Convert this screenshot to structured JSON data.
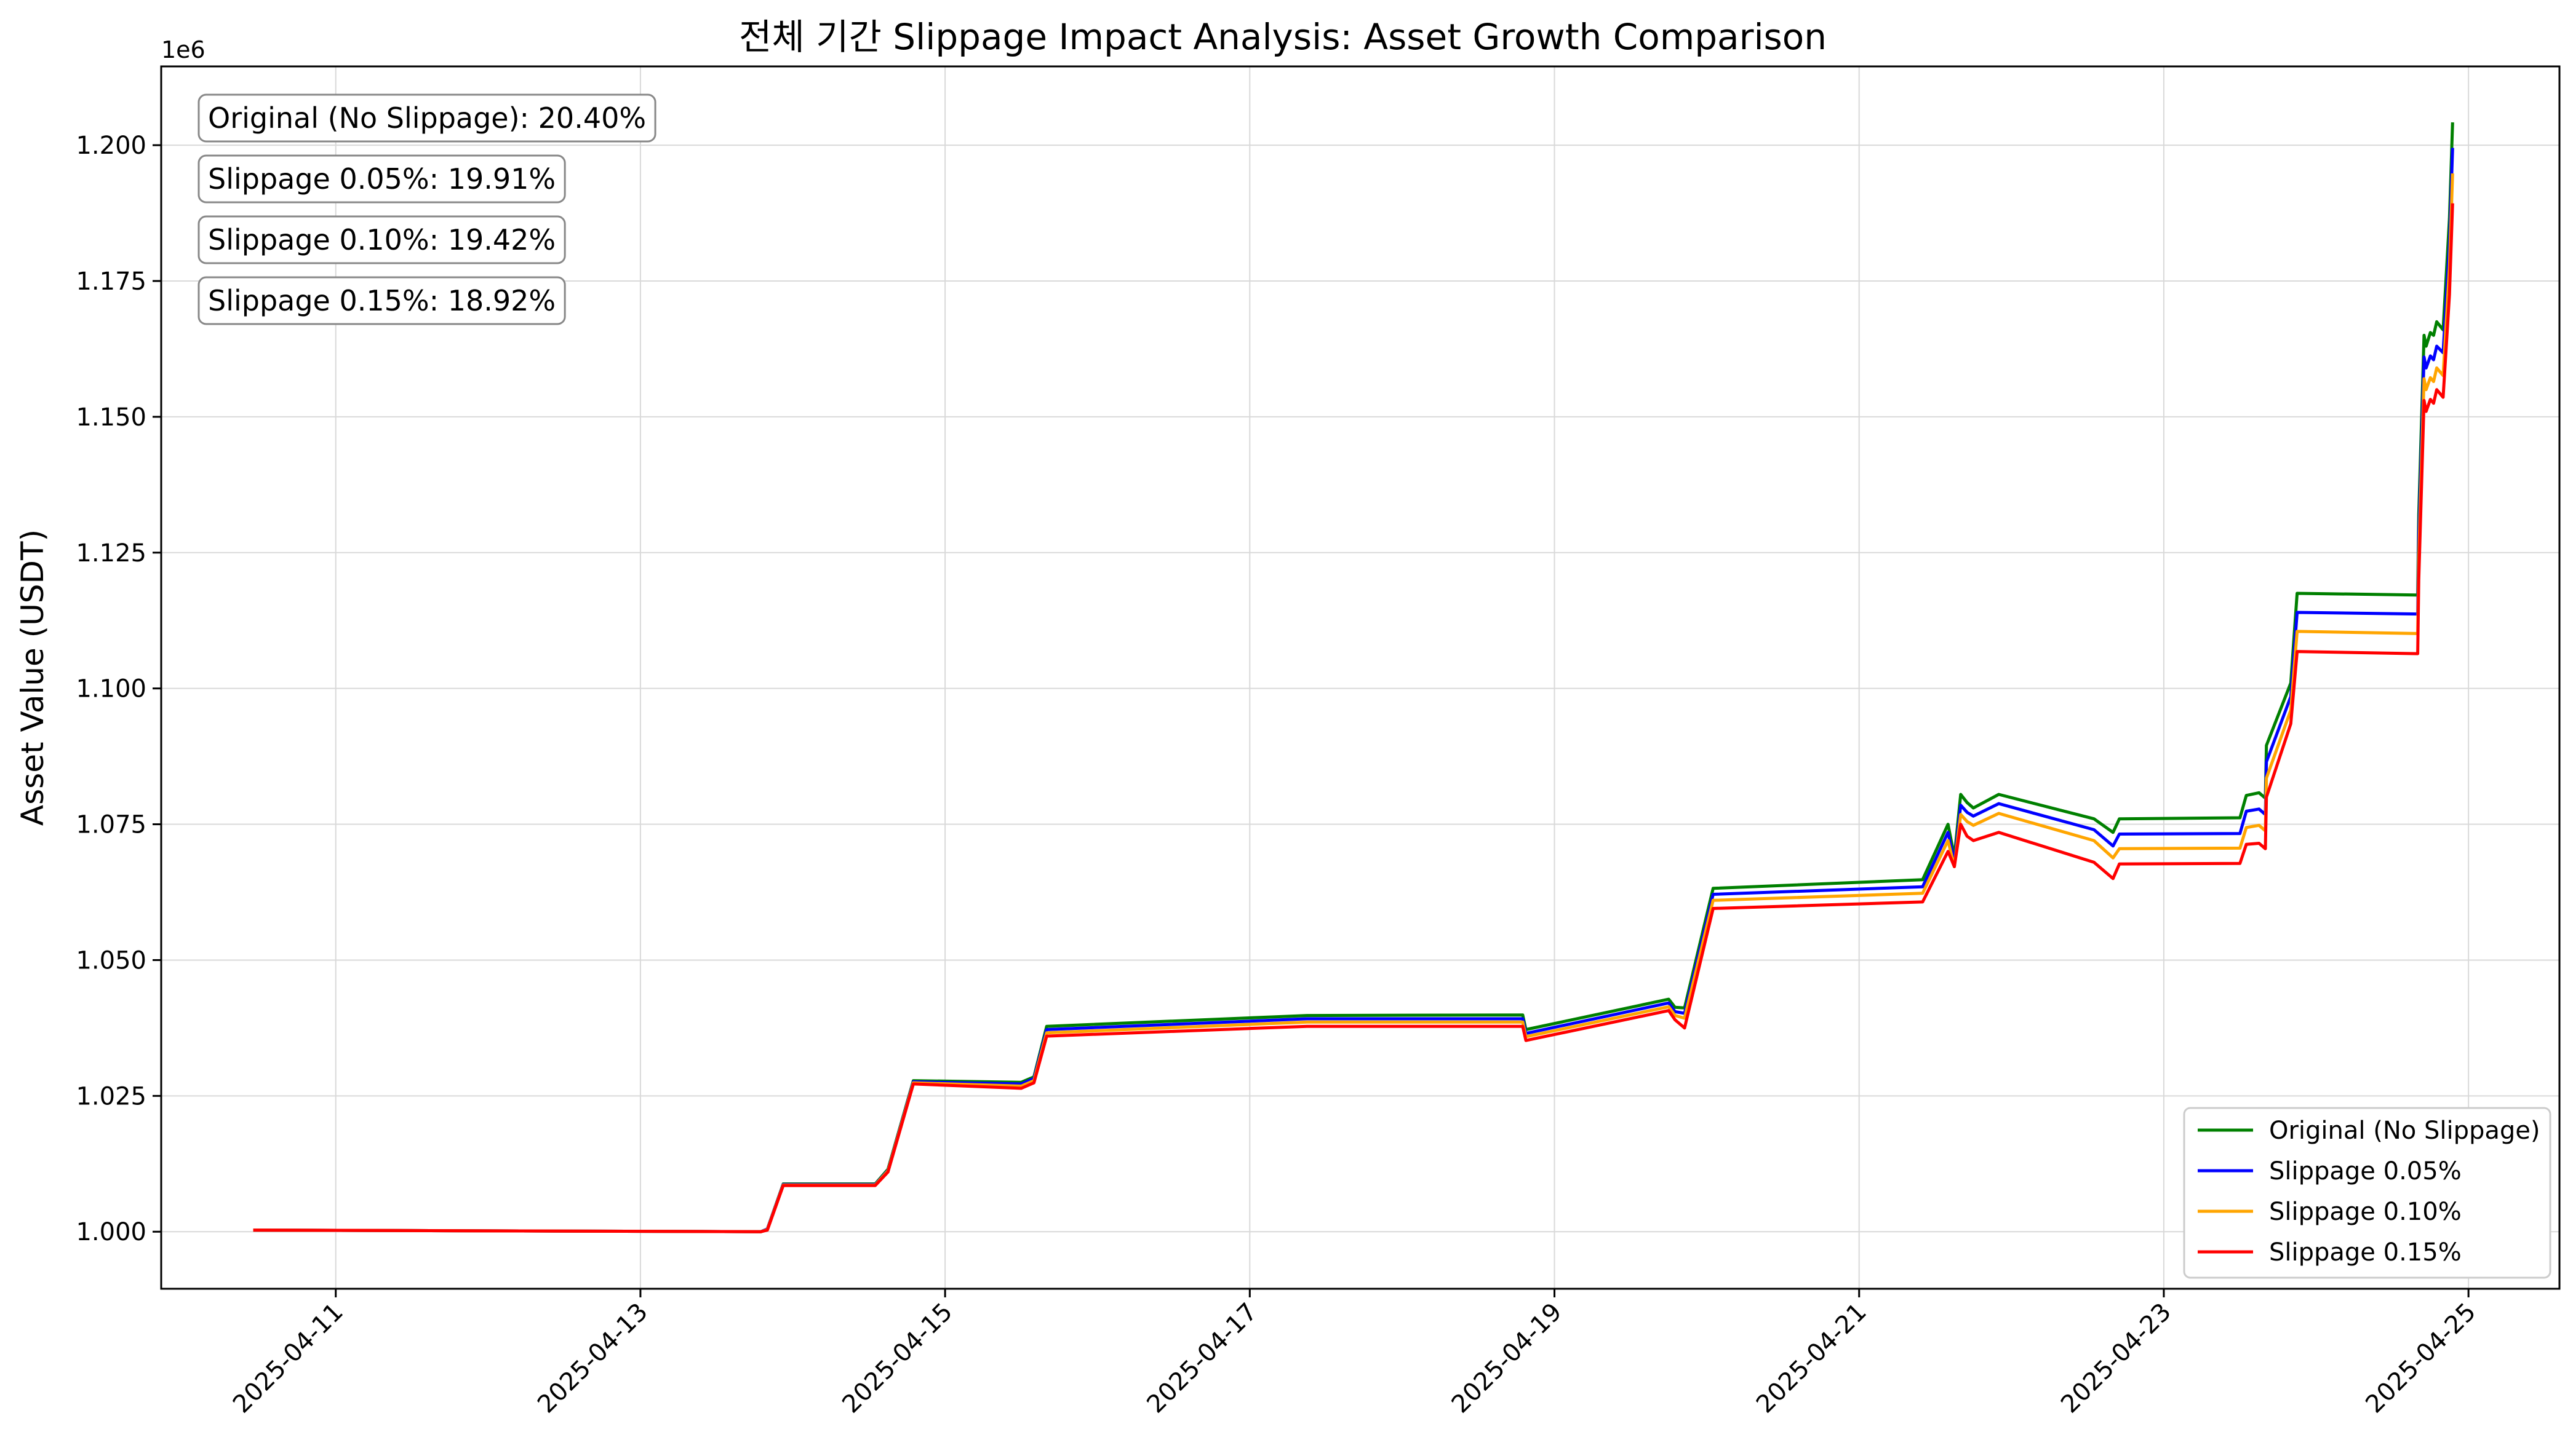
{
  "chart_data": {
    "type": "line",
    "title": "전체 기간 Slippage Impact Analysis: Asset Growth Comparison",
    "xlabel": "",
    "ylabel": "Asset Value (USDT)",
    "y_offset_label": "1e6",
    "x_ticks": [
      "2025-04-11",
      "2025-04-13",
      "2025-04-15",
      "2025-04-17",
      "2025-04-19",
      "2025-04-21",
      "2025-04-23",
      "2025-04-25"
    ],
    "y_ticks": [
      "1.000",
      "1.025",
      "1.050",
      "1.075",
      "1.100",
      "1.125",
      "1.150",
      "1.175",
      "1.200"
    ],
    "xlim": [
      "2025-04-09T20:30",
      "2025-04-25T14:20"
    ],
    "ylim": [
      0.9895,
      1.2145
    ],
    "grid": true,
    "legend_position": "bottom-right",
    "annotations": [
      "Original (No Slippage): 20.40%",
      "Slippage 0.05%: 19.91%",
      "Slippage 0.10%: 19.42%",
      "Slippage 0.15%: 18.92%"
    ],
    "x": [
      "2025-04-10T11:00",
      "2025-04-13T19:00",
      "2025-04-13T20:00",
      "2025-04-13T22:30",
      "2025-04-14T13:00",
      "2025-04-14T15:00",
      "2025-04-14T19:00",
      "2025-04-15T12:00",
      "2025-04-15T14:00",
      "2025-04-15T16:00",
      "2025-04-17T09:00",
      "2025-04-18T19:00",
      "2025-04-18T19:30",
      "2025-04-19T18:00",
      "2025-04-19T19:00",
      "2025-04-19T20:30",
      "2025-04-20T01:00",
      "2025-04-21T10:00",
      "2025-04-21T14:00",
      "2025-04-21T15:00",
      "2025-04-21T16:00",
      "2025-04-21T17:00",
      "2025-04-21T18:00",
      "2025-04-21T22:00",
      "2025-04-22T13:00",
      "2025-04-22T16:00",
      "2025-04-22T17:00",
      "2025-04-23T12:00",
      "2025-04-23T13:00",
      "2025-04-23T15:00",
      "2025-04-23T16:00",
      "2025-04-23T16:10",
      "2025-04-23T20:00",
      "2025-04-23T21:00",
      "2025-04-24T16:00",
      "2025-04-24T16:10",
      "2025-04-24T17:00",
      "2025-04-24T17:20",
      "2025-04-24T18:00",
      "2025-04-24T18:30",
      "2025-04-24T19:00",
      "2025-04-24T20:00",
      "2025-04-24T21:00",
      "2025-04-24T21:30"
    ],
    "series": [
      {
        "name": "Original (No Slippage)",
        "color": "#008000",
        "values": [
          1.0003,
          1.0,
          1.0005,
          1.0088,
          1.0088,
          1.0115,
          1.0278,
          1.0275,
          1.0285,
          1.0378,
          1.0398,
          1.0399,
          1.0372,
          1.0428,
          1.0413,
          1.0412,
          1.0632,
          1.0648,
          1.075,
          1.069,
          1.0805,
          1.079,
          1.078,
          1.0805,
          1.076,
          1.0735,
          1.076,
          1.0762,
          1.0803,
          1.0808,
          1.0798,
          1.0895,
          1.101,
          1.1175,
          1.1172,
          1.132,
          1.165,
          1.163,
          1.1655,
          1.165,
          1.1675,
          1.166,
          1.1865,
          1.2042
        ]
      },
      {
        "name": "Slippage 0.05%",
        "color": "#0000ff",
        "values": [
          1.0003,
          1.0,
          1.0005,
          1.0087,
          1.0087,
          1.0113,
          1.0276,
          1.0272,
          1.0282,
          1.0372,
          1.0392,
          1.0392,
          1.0365,
          1.0421,
          1.0405,
          1.0402,
          1.0621,
          1.0635,
          1.0735,
          1.068,
          1.0785,
          1.0772,
          1.0765,
          1.0788,
          1.074,
          1.071,
          1.0732,
          1.0733,
          1.0774,
          1.0778,
          1.0768,
          1.0865,
          1.0985,
          1.114,
          1.1137,
          1.128,
          1.161,
          1.159,
          1.1612,
          1.1605,
          1.163,
          1.1618,
          1.182,
          1.1995
        ]
      },
      {
        "name": "Slippage 0.10%",
        "color": "#ffa500",
        "values": [
          1.0003,
          1.0,
          1.0004,
          1.0086,
          1.0086,
          1.0112,
          1.0274,
          1.0268,
          1.0278,
          1.0366,
          1.0386,
          1.0386,
          1.0359,
          1.0414,
          1.0398,
          1.0393,
          1.061,
          1.0623,
          1.072,
          1.0672,
          1.0768,
          1.0755,
          1.0748,
          1.077,
          1.072,
          1.0688,
          1.0705,
          1.0706,
          1.0744,
          1.0748,
          1.0738,
          1.0835,
          1.096,
          1.1105,
          1.1101,
          1.124,
          1.157,
          1.155,
          1.1572,
          1.1565,
          1.159,
          1.1576,
          1.1775,
          1.1948
        ]
      },
      {
        "name": "Slippage 0.15%",
        "color": "#ff0000",
        "values": [
          1.0003,
          1.0,
          1.0003,
          1.0085,
          1.0085,
          1.011,
          1.0272,
          1.0264,
          1.0274,
          1.036,
          1.0378,
          1.0378,
          1.0352,
          1.0407,
          1.039,
          1.0375,
          1.0595,
          1.0607,
          1.07,
          1.0672,
          1.075,
          1.0728,
          1.072,
          1.0735,
          1.068,
          1.065,
          1.0677,
          1.0678,
          1.0713,
          1.0715,
          1.0705,
          1.08,
          1.0935,
          1.1068,
          1.1064,
          1.12,
          1.153,
          1.151,
          1.1532,
          1.1525,
          1.155,
          1.1536,
          1.1725,
          1.1893
        ]
      }
    ]
  }
}
